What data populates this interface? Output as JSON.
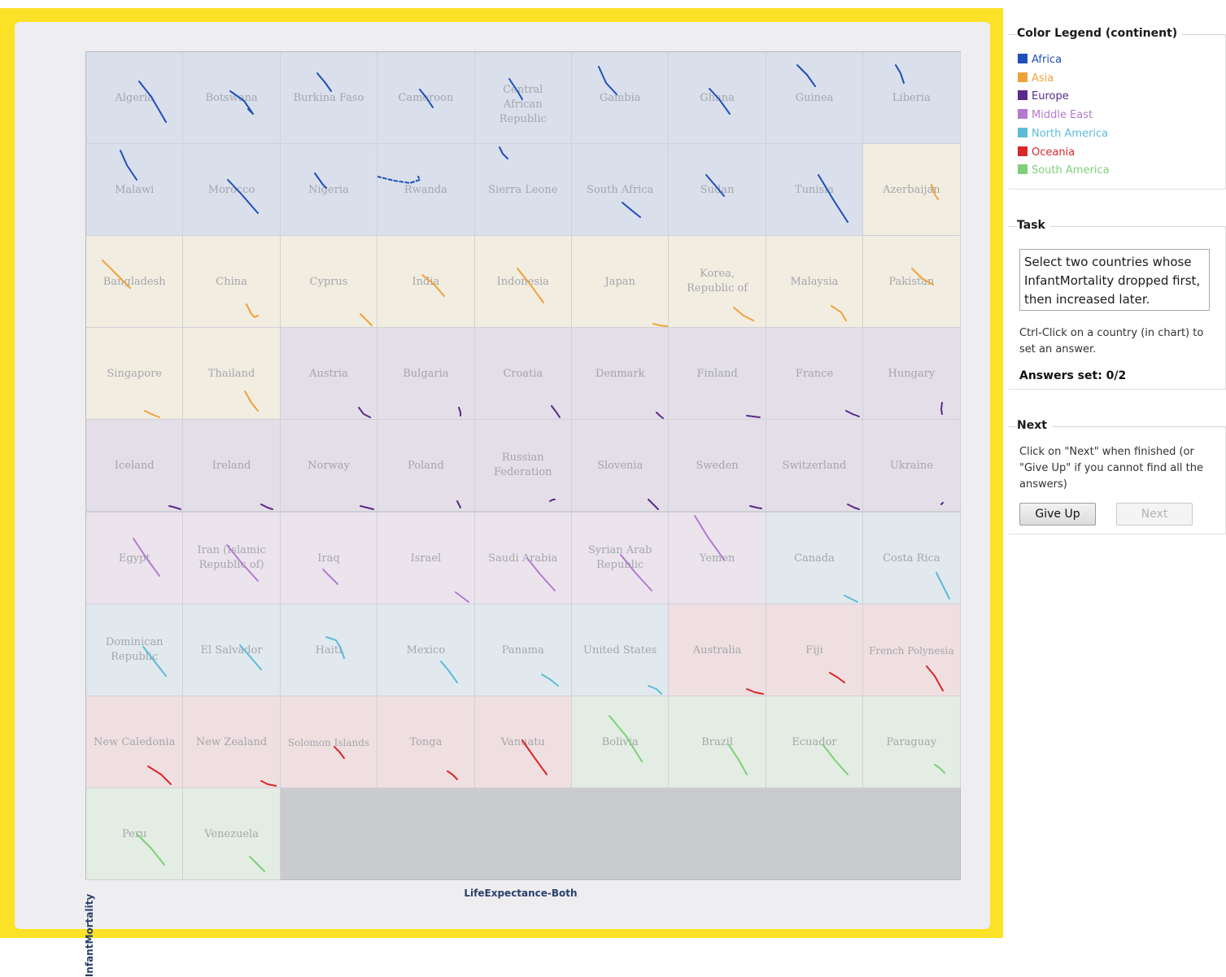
{
  "chart": {
    "x_axis_label": "LifeExpectance-Both",
    "y_axis_label": "InfantMortality",
    "continent_colors": {
      "Africa": "#1f4fb8",
      "Asia": "#f0a23a",
      "Europe": "#5a2a8a",
      "Middle East": "#b57ad0",
      "North America": "#5cbcd8",
      "Oceania": "#d8282a",
      "South America": "#7fcf7a"
    },
    "cells": [
      {
        "country": "Algeria",
        "continent": "Africa"
      },
      {
        "country": "Botswana",
        "continent": "Africa"
      },
      {
        "country": "Burkina Faso",
        "continent": "Africa"
      },
      {
        "country": "Cameroon",
        "continent": "Africa"
      },
      {
        "country": "Central African Republic",
        "continent": "Africa"
      },
      {
        "country": "Gambia",
        "continent": "Africa"
      },
      {
        "country": "Ghana",
        "continent": "Africa"
      },
      {
        "country": "Guinea",
        "continent": "Africa"
      },
      {
        "country": "Liberia",
        "continent": "Africa"
      },
      {
        "country": "Malawi",
        "continent": "Africa"
      },
      {
        "country": "Morocco",
        "continent": "Africa"
      },
      {
        "country": "Nigeria",
        "continent": "Africa"
      },
      {
        "country": "Rwanda",
        "continent": "Africa"
      },
      {
        "country": "Sierra Leone",
        "continent": "Africa"
      },
      {
        "country": "South Africa",
        "continent": "Africa"
      },
      {
        "country": "Sudan",
        "continent": "Africa"
      },
      {
        "country": "Tunisia",
        "continent": "Africa"
      },
      {
        "country": "Azerbaijan",
        "continent": "Asia"
      },
      {
        "country": "Bangladesh",
        "continent": "Asia"
      },
      {
        "country": "China",
        "continent": "Asia"
      },
      {
        "country": "Cyprus",
        "continent": "Asia"
      },
      {
        "country": "India",
        "continent": "Asia"
      },
      {
        "country": "Indonesia",
        "continent": "Asia"
      },
      {
        "country": "Japan",
        "continent": "Asia"
      },
      {
        "country": "Korea, Republic of",
        "continent": "Asia"
      },
      {
        "country": "Malaysia",
        "continent": "Asia"
      },
      {
        "country": "Pakistan",
        "continent": "Asia"
      },
      {
        "country": "Singapore",
        "continent": "Asia"
      },
      {
        "country": "Thailand",
        "continent": "Asia"
      },
      {
        "country": "Austria",
        "continent": "Europe"
      },
      {
        "country": "Bulgaria",
        "continent": "Europe"
      },
      {
        "country": "Croatia",
        "continent": "Europe"
      },
      {
        "country": "Denmark",
        "continent": "Europe"
      },
      {
        "country": "Finland",
        "continent": "Europe"
      },
      {
        "country": "France",
        "continent": "Europe"
      },
      {
        "country": "Hungary",
        "continent": "Europe"
      },
      {
        "country": "Iceland",
        "continent": "Europe"
      },
      {
        "country": "Ireland",
        "continent": "Europe"
      },
      {
        "country": "Norway",
        "continent": "Europe"
      },
      {
        "country": "Poland",
        "continent": "Europe"
      },
      {
        "country": "Russian Federation",
        "continent": "Europe"
      },
      {
        "country": "Slovenia",
        "continent": "Europe"
      },
      {
        "country": "Sweden",
        "continent": "Europe"
      },
      {
        "country": "Switzerland",
        "continent": "Europe"
      },
      {
        "country": "Ukraine",
        "continent": "Europe"
      },
      {
        "country": "Egypt",
        "continent": "Middle East"
      },
      {
        "country": "Iran (Islamic Republic of)",
        "continent": "Middle East"
      },
      {
        "country": "Iraq",
        "continent": "Middle East"
      },
      {
        "country": "Israel",
        "continent": "Middle East"
      },
      {
        "country": "Saudi Arabia",
        "continent": "Middle East"
      },
      {
        "country": "Syrian Arab Republic",
        "continent": "Middle East"
      },
      {
        "country": "Yemen",
        "continent": "Middle East"
      },
      {
        "country": "Canada",
        "continent": "North America"
      },
      {
        "country": "Costa Rica",
        "continent": "North America"
      },
      {
        "country": "Dominican Republic",
        "continent": "North America"
      },
      {
        "country": "El Salvador",
        "continent": "North America"
      },
      {
        "country": "Haiti",
        "continent": "North America"
      },
      {
        "country": "Mexico",
        "continent": "North America"
      },
      {
        "country": "Panama",
        "continent": "North America"
      },
      {
        "country": "United States",
        "continent": "North America"
      },
      {
        "country": "Australia",
        "continent": "Oceania"
      },
      {
        "country": "Fiji",
        "continent": "Oceania"
      },
      {
        "country": "French Polynesia",
        "continent": "Oceania"
      },
      {
        "country": "New Caledonia",
        "continent": "Oceania"
      },
      {
        "country": "New Zealand",
        "continent": "Oceania"
      },
      {
        "country": "Solomon Islands",
        "continent": "Oceania"
      },
      {
        "country": "Tonga",
        "continent": "Oceania"
      },
      {
        "country": "Vanuatu",
        "continent": "Oceania"
      },
      {
        "country": "Bolivia",
        "continent": "South America"
      },
      {
        "country": "Brazil",
        "continent": "South America"
      },
      {
        "country": "Ecuador",
        "continent": "South America"
      },
      {
        "country": "Paraguay",
        "continent": "South America"
      },
      {
        "country": "Peru",
        "continent": "South America"
      },
      {
        "country": "Venezuela",
        "continent": "South America"
      }
    ]
  },
  "legend": {
    "title": "Color Legend (continent)",
    "items": [
      {
        "label": "Africa",
        "color": "#1f4fb8"
      },
      {
        "label": "Asia",
        "color": "#f0a23a"
      },
      {
        "label": "Europe",
        "color": "#5a2a8a"
      },
      {
        "label": "Middle East",
        "color": "#b57ad0"
      },
      {
        "label": "North America",
        "color": "#5cbcd8"
      },
      {
        "label": "Oceania",
        "color": "#d8282a"
      },
      {
        "label": "South America",
        "color": "#7fcf7a"
      }
    ]
  },
  "task": {
    "title": "Task",
    "description": "Select two countries whose InfantMortality dropped first, then increased later.",
    "instruction": "Ctrl-Click on a country (in chart) to set an answer.",
    "answers_label": "Answers set:",
    "answers_value": "0/2"
  },
  "next": {
    "title": "Next",
    "instruction": "Click on \"Next\" when finished (or \"Give Up\" if  you cannot find all the answers)",
    "give_up_label": "Give Up",
    "next_label": "Next"
  }
}
